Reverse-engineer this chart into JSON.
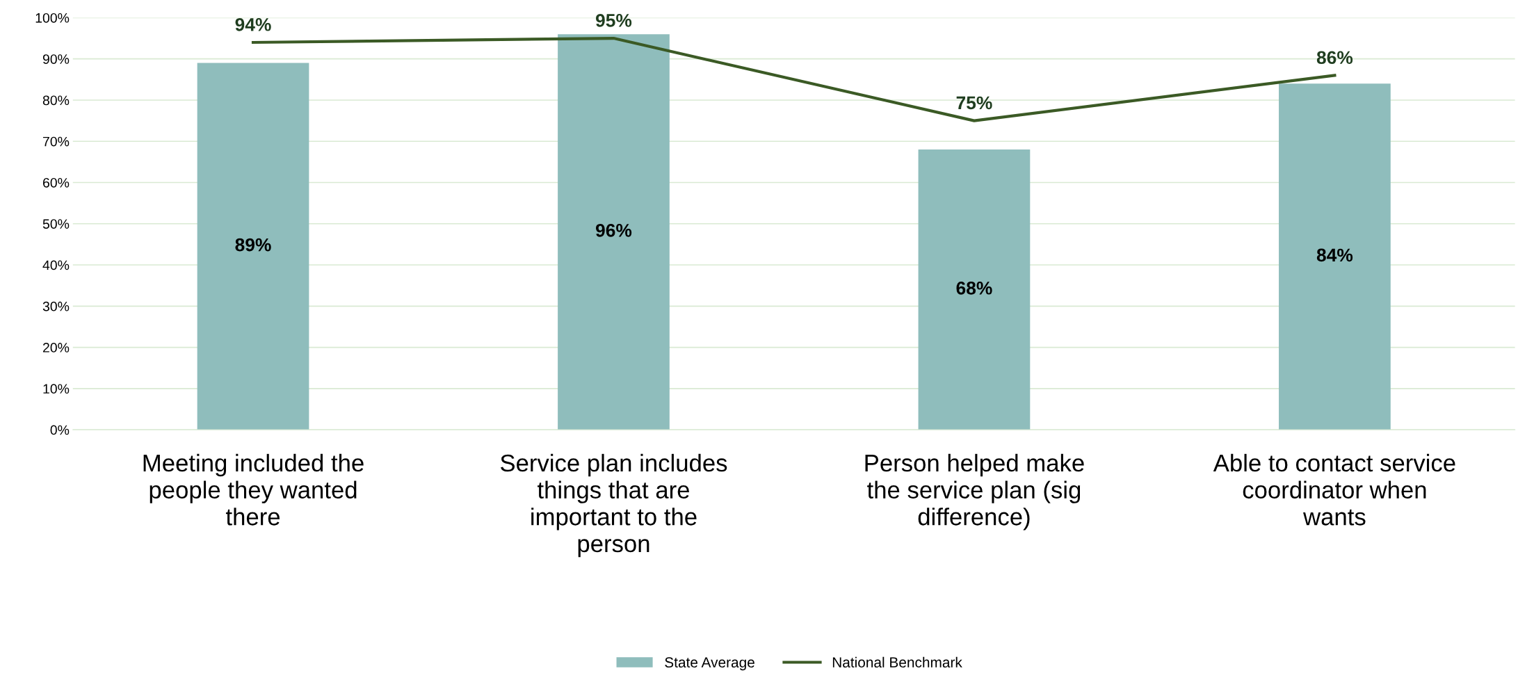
{
  "chart_data": {
    "type": "bar",
    "categories": [
      "Meeting included the\npeople they wanted\nthere",
      "Service plan includes\nthings that are\nimportant to the\nperson",
      "Person helped make\nthe service plan (sig\ndifference)",
      "Able to contact service\ncoordinator when\nwants"
    ],
    "series": [
      {
        "name": "State Average",
        "color": "#8fbdbc",
        "values": [
          89,
          96,
          68,
          84
        ],
        "value_labels": [
          "89%",
          "96%",
          "68%",
          "84%"
        ]
      },
      {
        "name": "National Benchmark",
        "type": "line",
        "color": "#3b5a25",
        "values": [
          94,
          95,
          75,
          86
        ],
        "value_labels": [
          "94%",
          "95%",
          "75%",
          "86%"
        ]
      }
    ],
    "ylim": [
      0,
      100
    ],
    "yticks": [
      {
        "value": 0,
        "label": "0%"
      },
      {
        "value": 10,
        "label": "10%"
      },
      {
        "value": 20,
        "label": "20%"
      },
      {
        "value": 30,
        "label": "30%"
      },
      {
        "value": 40,
        "label": "40%"
      },
      {
        "value": 50,
        "label": "50%"
      },
      {
        "value": 60,
        "label": "60%"
      },
      {
        "value": 70,
        "label": "70%"
      },
      {
        "value": 80,
        "label": "80%"
      },
      {
        "value": 90,
        "label": "90%"
      },
      {
        "value": 100,
        "label": "100%"
      }
    ],
    "grid": "y",
    "legend": "bottom",
    "marker": "none",
    "line_style": "solid"
  }
}
